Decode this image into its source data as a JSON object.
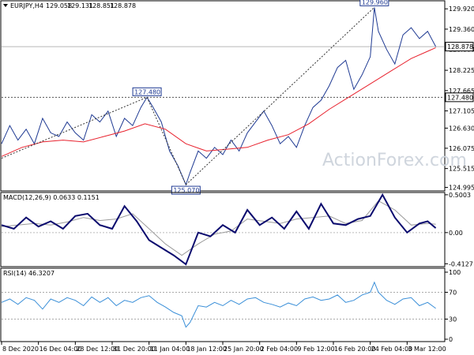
{
  "chart_data": [
    {
      "type": "line",
      "panel": "price",
      "symbol_label": "EURJPY,H4",
      "ohlc_readout": [
        "129.058",
        "129.131",
        "128.851",
        "128.878"
      ],
      "watermark": "ActionForex.com",
      "y_axis_ticks": [
        "129.920",
        "129.360",
        "128.800",
        "128.225",
        "127.665",
        "127.105",
        "126.630",
        "126.075",
        "125.515",
        "124.995"
      ],
      "y_tick_values": [
        129.92,
        129.36,
        128.8,
        128.225,
        127.665,
        127.105,
        126.63,
        126.075,
        125.515,
        124.995
      ],
      "ylim": [
        124.92,
        130.12
      ],
      "current_price": "128.878",
      "current_price_value": 128.878,
      "level_line": "127.480",
      "level_line_value": 127.48,
      "annotations": [
        {
          "text": "127.480",
          "x": 35.5,
          "y": 127.48
        },
        {
          "text": "125.070",
          "x": 45.0,
          "y": 125.07
        },
        {
          "text": "129.960",
          "x": 91.0,
          "y": 129.96
        }
      ],
      "price_x": [
        0,
        2,
        4,
        6,
        8,
        10,
        12,
        14,
        16,
        18,
        20,
        22,
        24,
        26,
        28,
        30,
        32,
        34,
        35.5,
        37,
        39,
        41,
        43,
        45,
        46,
        48,
        50,
        52,
        54,
        56,
        58,
        60,
        62,
        64,
        66,
        68,
        70,
        72,
        74,
        76,
        78,
        80,
        82,
        84,
        86,
        88,
        90,
        91,
        92,
        94,
        96,
        98,
        100,
        102,
        104,
        106
      ],
      "price_y": [
        126.2,
        126.7,
        126.3,
        126.6,
        126.2,
        126.9,
        126.5,
        126.4,
        126.8,
        126.5,
        126.3,
        127.0,
        126.8,
        127.1,
        126.4,
        126.9,
        126.7,
        127.2,
        127.48,
        127.2,
        126.8,
        126.0,
        125.6,
        125.07,
        125.4,
        126.0,
        125.8,
        126.1,
        125.9,
        126.3,
        126.0,
        126.5,
        126.8,
        127.1,
        126.7,
        126.2,
        126.4,
        126.1,
        126.7,
        127.2,
        127.4,
        127.8,
        128.3,
        128.5,
        127.7,
        128.1,
        128.6,
        129.96,
        129.3,
        128.8,
        128.4,
        129.2,
        129.4,
        129.1,
        129.3,
        128.878
      ],
      "ma_x": [
        0,
        5,
        10,
        15,
        20,
        25,
        30,
        35,
        40,
        45,
        50,
        55,
        60,
        65,
        70,
        75,
        80,
        85,
        90,
        95,
        100,
        104,
        106
      ],
      "ma_y": [
        125.85,
        126.1,
        126.25,
        126.3,
        126.25,
        126.4,
        126.55,
        126.75,
        126.6,
        126.2,
        126.0,
        126.05,
        126.1,
        126.3,
        126.45,
        126.75,
        127.15,
        127.5,
        127.85,
        128.2,
        128.55,
        128.75,
        128.85
      ],
      "x_tick_labels": [
        "8 Dec 2020",
        "16 Dec 04:00",
        "23 Dec 12:00",
        "31 Dec 20:00",
        "11 Jan 04:00",
        "18 Jan 12:00",
        "25 Jan 20:00",
        "2 Feb 04:00",
        "9 Feb 12:00",
        "16 Feb 20:00",
        "24 Feb 04:00",
        "3 Mar 12:00"
      ],
      "x_tick_positions": [
        0,
        9,
        18,
        27,
        36,
        45,
        54,
        63,
        72,
        81,
        90,
        99
      ],
      "xlim": [
        0,
        108
      ],
      "colors": {
        "price": "#1f3a93",
        "ma": "#e8222e",
        "level": "#555555"
      }
    },
    {
      "type": "line",
      "panel": "macd",
      "label": "MACD(12,26,9) 0.0633 0.1151",
      "y_axis_ticks": [
        "0.5003",
        "0.00",
        "-0.4127"
      ],
      "y_tick_values": [
        0.5003,
        0.0,
        -0.4127
      ],
      "ylim": [
        -0.44,
        0.52
      ],
      "macd_x": [
        0,
        3,
        6,
        9,
        12,
        15,
        18,
        21,
        24,
        27,
        30,
        33,
        36,
        39,
        42,
        45,
        48,
        51,
        54,
        57,
        60,
        63,
        66,
        69,
        72,
        75,
        78,
        81,
        84,
        87,
        90,
        93,
        96,
        99,
        102,
        104,
        106
      ],
      "macd_y": [
        0.1,
        0.05,
        0.2,
        0.08,
        0.15,
        0.05,
        0.22,
        0.25,
        0.1,
        0.05,
        0.35,
        0.15,
        -0.1,
        -0.2,
        -0.3,
        -0.42,
        0.0,
        -0.05,
        0.1,
        0.0,
        0.3,
        0.1,
        0.2,
        0.05,
        0.28,
        0.05,
        0.38,
        0.12,
        0.1,
        0.18,
        0.22,
        0.5,
        0.2,
        0.0,
        0.12,
        0.15,
        0.06
      ],
      "signal_x": [
        0,
        4,
        8,
        12,
        16,
        20,
        24,
        28,
        32,
        36,
        40,
        44,
        48,
        52,
        56,
        60,
        64,
        68,
        72,
        76,
        80,
        84,
        88,
        92,
        96,
        100,
        104,
        106
      ],
      "signal_y": [
        0.08,
        0.1,
        0.12,
        0.1,
        0.14,
        0.2,
        0.16,
        0.18,
        0.25,
        0.05,
        -0.15,
        -0.3,
        -0.15,
        -0.02,
        0.02,
        0.18,
        0.15,
        0.12,
        0.18,
        0.2,
        0.22,
        0.12,
        0.16,
        0.42,
        0.3,
        0.1,
        0.12,
        0.11
      ],
      "colors": {
        "macd": "#0a0a6e",
        "signal": "#9a9a9a"
      }
    },
    {
      "type": "line",
      "panel": "rsi",
      "label": "RSI(14) 46.3207",
      "y_axis_ticks": [
        "100",
        "70",
        "30",
        "0"
      ],
      "y_tick_values": [
        100,
        70,
        30,
        0
      ],
      "ylim": [
        0,
        100
      ],
      "levels": [
        70,
        30
      ],
      "rsi_x": [
        0,
        2,
        4,
        6,
        8,
        10,
        12,
        14,
        16,
        18,
        20,
        22,
        24,
        26,
        28,
        30,
        32,
        34,
        36,
        38,
        40,
        42,
        44,
        45,
        46,
        48,
        50,
        52,
        54,
        56,
        58,
        60,
        62,
        64,
        66,
        68,
        70,
        72,
        74,
        76,
        78,
        80,
        82,
        84,
        86,
        88,
        90,
        91,
        92,
        94,
        96,
        98,
        100,
        102,
        104,
        106
      ],
      "rsi_y": [
        55,
        60,
        52,
        62,
        58,
        45,
        60,
        55,
        62,
        58,
        50,
        63,
        55,
        62,
        50,
        58,
        55,
        62,
        65,
        55,
        48,
        40,
        35,
        18,
        25,
        50,
        48,
        55,
        50,
        58,
        52,
        60,
        62,
        55,
        52,
        48,
        54,
        50,
        60,
        63,
        58,
        60,
        66,
        55,
        58,
        66,
        70,
        85,
        70,
        58,
        52,
        60,
        62,
        50,
        55,
        46
      ],
      "colors": {
        "rsi": "#3a8fd8",
        "levels": "#aaaaaa"
      }
    }
  ]
}
